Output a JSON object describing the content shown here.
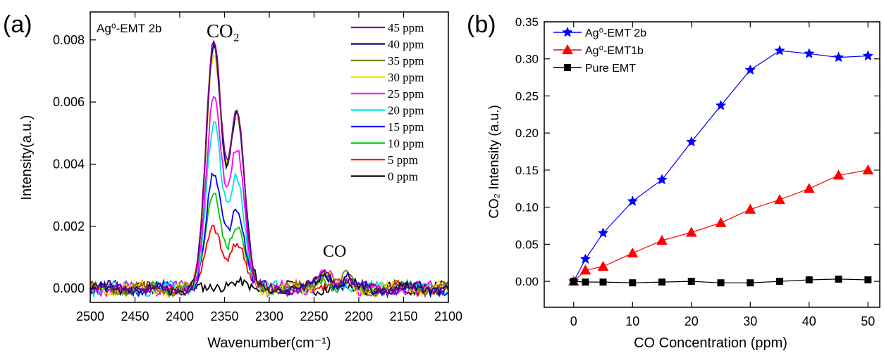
{
  "chart_data": [
    {
      "type": "line",
      "panel_label": "(a)",
      "annotation_sample": "Ag⁰-EMT 2b",
      "annotation_co2": "CO₂",
      "annotation_co": "CO",
      "xlabel": "Wavenumber(cm⁻¹)",
      "ylabel": "Intensity(a.u.)",
      "xlim": [
        2500,
        2100
      ],
      "ylim": [
        -0.00045,
        0.0089
      ],
      "x_axis_reversed": true,
      "xticks": [
        2500,
        2450,
        2400,
        2350,
        2300,
        2250,
        2200,
        2150,
        2100
      ],
      "xtick_labels": [
        "2500",
        "2450",
        "2400",
        "2350",
        "2300",
        "2250",
        "2200",
        "2150",
        "2100"
      ],
      "yticks": [
        0,
        0.002,
        0.004,
        0.006,
        0.008
      ],
      "ytick_labels": [
        "0.000",
        "0.002",
        "0.004",
        "0.006",
        "0.008"
      ],
      "legend_position": "top-right",
      "series": [
        {
          "name": "45 ppm",
          "color": "#800080",
          "peak_2362": 0.0079,
          "peak_2337": 0.0057,
          "peak_2237": 0.0006
        },
        {
          "name": "40 ppm",
          "color": "#000080",
          "peak_2362": 0.0078,
          "peak_2337": 0.0056,
          "peak_2237": 0.00055
        },
        {
          "name": "35 ppm",
          "color": "#808000",
          "peak_2362": 0.0078,
          "peak_2337": 0.0055,
          "peak_2237": 0.00055
        },
        {
          "name": "30 ppm",
          "color": "#e5e500",
          "peak_2362": 0.0077,
          "peak_2337": 0.0054,
          "peak_2237": 0.0005
        },
        {
          "name": "25 ppm",
          "color": "#ff00ff",
          "peak_2362": 0.0062,
          "peak_2337": 0.0044,
          "peak_2237": 0.0005
        },
        {
          "name": "20 ppm",
          "color": "#00e5e5",
          "peak_2362": 0.0052,
          "peak_2337": 0.0036,
          "peak_2237": 0.0004
        },
        {
          "name": "15 ppm",
          "color": "#0000ff",
          "peak_2362": 0.0036,
          "peak_2337": 0.0026,
          "peak_2237": 0.0004
        },
        {
          "name": "10 ppm",
          "color": "#00cc00",
          "peak_2362": 0.003,
          "peak_2337": 0.002,
          "peak_2237": 0.0003
        },
        {
          "name": "5 ppm",
          "color": "#ff0000",
          "peak_2362": 0.002,
          "peak_2337": 0.0014,
          "peak_2237": 0.0002
        },
        {
          "name": "0 ppm",
          "color": "#000000",
          "peak_2362": 0.00015,
          "peak_2337": 0.0001,
          "peak_2237": 0.0
        }
      ]
    },
    {
      "type": "line",
      "panel_label": "(b)",
      "xlabel": "CO Concentration (ppm)",
      "ylabel": "CO₂ Intensity (a.u.)",
      "xlim": [
        -5,
        52
      ],
      "ylim": [
        -0.035,
        0.35
      ],
      "xticks": [
        0,
        10,
        20,
        30,
        40,
        50
      ],
      "xtick_labels": [
        "0",
        "10",
        "20",
        "30",
        "40",
        "50"
      ],
      "yticks": [
        0,
        0.05,
        0.1,
        0.15,
        0.2,
        0.25,
        0.3,
        0.35
      ],
      "ytick_labels": [
        "0.00",
        "0.05",
        "0.10",
        "0.15",
        "0.20",
        "0.25",
        "0.30",
        "0.35"
      ],
      "legend_position": "top-left",
      "series": [
        {
          "name": "Ag⁰-EMT 2b",
          "color": "#0000ff",
          "marker": "star",
          "x": [
            0,
            2,
            5,
            10,
            15,
            20,
            25,
            30,
            35,
            40,
            45,
            50
          ],
          "y": [
            0.0,
            0.03,
            0.065,
            0.108,
            0.137,
            0.188,
            0.237,
            0.285,
            0.311,
            0.307,
            0.302,
            0.304
          ]
        },
        {
          "name": "Ag⁰-EMT1b",
          "color": "#ff0000",
          "marker": "triangle",
          "x": [
            0,
            2,
            5,
            10,
            15,
            20,
            25,
            30,
            35,
            40,
            45,
            50
          ],
          "y": [
            0.0,
            0.015,
            0.02,
            0.038,
            0.055,
            0.066,
            0.079,
            0.097,
            0.11,
            0.125,
            0.143,
            0.15
          ]
        },
        {
          "name": "Pure EMT",
          "color": "#000000",
          "marker": "square",
          "x": [
            0,
            2,
            5,
            10,
            15,
            20,
            25,
            30,
            35,
            40,
            45,
            50
          ],
          "y": [
            0.0,
            -0.001,
            -0.001,
            -0.002,
            -0.001,
            0.0,
            -0.002,
            -0.002,
            0.0,
            0.002,
            0.003,
            0.002
          ]
        }
      ]
    }
  ]
}
